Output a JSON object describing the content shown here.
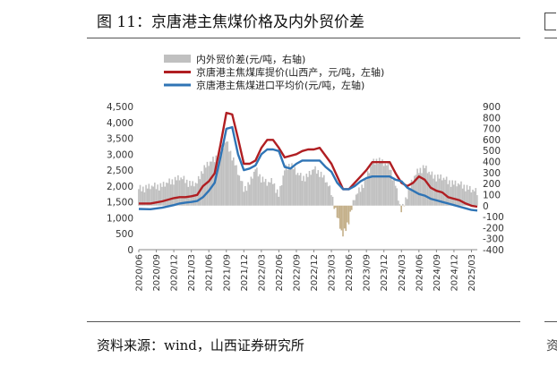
{
  "header": {
    "title": "图 11：京唐港主焦煤价格及内外贸价差"
  },
  "footer": {
    "source": "资料来源：wind，山西证券研究所"
  },
  "chart_data": {
    "type": "line",
    "title": "图 11：京唐港主焦煤价格及内外贸价差",
    "xlabel": "",
    "ylabel": "",
    "left_axis": {
      "ylim": [
        0,
        4500
      ],
      "ticks": [
        "0",
        "500",
        "1,000",
        "1,500",
        "2,000",
        "2,500",
        "3,000",
        "3,500",
        "4,000",
        "4,500"
      ]
    },
    "right_axis": {
      "ylim": [
        -400,
        900
      ],
      "ticks": [
        "-400",
        "-300",
        "-200",
        "-100",
        "0",
        "100",
        "200",
        "300",
        "400",
        "500",
        "600",
        "700",
        "800",
        "900"
      ]
    },
    "x_ticks": [
      "2020/06",
      "2020/09",
      "2020/12",
      "2021/03",
      "2021/06",
      "2021/09",
      "2021/12",
      "2022/03",
      "2022/06",
      "2022/09",
      "2022/12",
      "2023/03",
      "2023/06",
      "2023/09",
      "2023/12",
      "2024/03",
      "2024/06",
      "2024/09",
      "2024/12",
      "2025/03"
    ],
    "x_range": [
      "2020/06",
      "2025/04"
    ],
    "legend": [
      {
        "name": "内外贸价差(元/吨，右轴)",
        "type": "bar",
        "color": "#c0c0c0",
        "negative_color": "#c4b08a"
      },
      {
        "name": "京唐港主焦煤库提价(山西产，元/吨，左轴)",
        "type": "line",
        "color": "#b01e22"
      },
      {
        "name": "京唐港主焦煤进口平均价(元/吨，左轴)",
        "type": "line",
        "color": "#2f74b5"
      }
    ],
    "series": [
      {
        "name": "京唐港主焦煤库提价(山西产，元/吨，左轴)",
        "axis": "left",
        "points": [
          [
            "2020/06",
            1450
          ],
          [
            "2020/08",
            1450
          ],
          [
            "2020/10",
            1520
          ],
          [
            "2020/12",
            1620
          ],
          [
            "2021/01",
            1650
          ],
          [
            "2021/02",
            1650
          ],
          [
            "2021/03",
            1680
          ],
          [
            "2021/04",
            1720
          ],
          [
            "2021/05",
            2000
          ],
          [
            "2021/06",
            2150
          ],
          [
            "2021/07",
            2400
          ],
          [
            "2021/08",
            3300
          ],
          [
            "2021/09",
            4300
          ],
          [
            "2021/10",
            4250
          ],
          [
            "2021/11",
            3500
          ],
          [
            "2021/12",
            2700
          ],
          [
            "2022/01",
            2700
          ],
          [
            "2022/02",
            2800
          ],
          [
            "2022/03",
            3200
          ],
          [
            "2022/04",
            3450
          ],
          [
            "2022/05",
            3450
          ],
          [
            "2022/06",
            3200
          ],
          [
            "2022/07",
            2900
          ],
          [
            "2022/08",
            2950
          ],
          [
            "2022/09",
            3000
          ],
          [
            "2022/10",
            3100
          ],
          [
            "2022/11",
            3150
          ],
          [
            "2022/12",
            3150
          ],
          [
            "2023/01",
            3200
          ],
          [
            "2023/02",
            2950
          ],
          [
            "2023/03",
            2700
          ],
          [
            "2023/04",
            2300
          ],
          [
            "2023/05",
            1900
          ],
          [
            "2023/06",
            1900
          ],
          [
            "2023/07",
            2100
          ],
          [
            "2023/08",
            2300
          ],
          [
            "2023/09",
            2500
          ],
          [
            "2023/10",
            2750
          ],
          [
            "2023/11",
            2750
          ],
          [
            "2023/12",
            2750
          ],
          [
            "2024/01",
            2750
          ],
          [
            "2024/02",
            2400
          ],
          [
            "2024/03",
            2100
          ],
          [
            "2024/04",
            2000
          ],
          [
            "2024/05",
            2100
          ],
          [
            "2024/06",
            2300
          ],
          [
            "2024/07",
            2200
          ],
          [
            "2024/08",
            1950
          ],
          [
            "2024/09",
            1850
          ],
          [
            "2024/10",
            1800
          ],
          [
            "2024/11",
            1650
          ],
          [
            "2024/12",
            1600
          ],
          [
            "2025/01",
            1550
          ],
          [
            "2025/02",
            1450
          ],
          [
            "2025/03",
            1380
          ],
          [
            "2025/04",
            1350
          ]
        ]
      },
      {
        "name": "京唐港主焦煤进口平均价(元/吨，左轴)",
        "axis": "left",
        "points": [
          [
            "2020/06",
            1280
          ],
          [
            "2020/08",
            1270
          ],
          [
            "2020/10",
            1320
          ],
          [
            "2020/12",
            1400
          ],
          [
            "2021/01",
            1450
          ],
          [
            "2021/02",
            1480
          ],
          [
            "2021/03",
            1500
          ],
          [
            "2021/04",
            1530
          ],
          [
            "2021/05",
            1650
          ],
          [
            "2021/06",
            1850
          ],
          [
            "2021/07",
            2100
          ],
          [
            "2021/08",
            2900
          ],
          [
            "2021/09",
            3800
          ],
          [
            "2021/10",
            3850
          ],
          [
            "2021/11",
            3000
          ],
          [
            "2021/12",
            2500
          ],
          [
            "2022/01",
            2550
          ],
          [
            "2022/02",
            2650
          ],
          [
            "2022/03",
            3000
          ],
          [
            "2022/04",
            3150
          ],
          [
            "2022/05",
            3150
          ],
          [
            "2022/06",
            3100
          ],
          [
            "2022/07",
            2600
          ],
          [
            "2022/08",
            2550
          ],
          [
            "2022/09",
            2700
          ],
          [
            "2022/10",
            2800
          ],
          [
            "2022/11",
            2800
          ],
          [
            "2022/12",
            2800
          ],
          [
            "2023/01",
            2800
          ],
          [
            "2023/02",
            2600
          ],
          [
            "2023/03",
            2450
          ],
          [
            "2023/04",
            2100
          ],
          [
            "2023/05",
            1900
          ],
          [
            "2023/06",
            1900
          ],
          [
            "2023/07",
            2000
          ],
          [
            "2023/08",
            2150
          ],
          [
            "2023/09",
            2250
          ],
          [
            "2023/10",
            2300
          ],
          [
            "2023/11",
            2300
          ],
          [
            "2023/12",
            2300
          ],
          [
            "2024/01",
            2300
          ],
          [
            "2024/02",
            2200
          ],
          [
            "2024/03",
            2150
          ],
          [
            "2024/04",
            1950
          ],
          [
            "2024/05",
            1850
          ],
          [
            "2024/06",
            1750
          ],
          [
            "2024/07",
            1700
          ],
          [
            "2024/08",
            1600
          ],
          [
            "2024/09",
            1550
          ],
          [
            "2024/10",
            1500
          ],
          [
            "2024/11",
            1450
          ],
          [
            "2024/12",
            1400
          ],
          [
            "2025/01",
            1350
          ],
          [
            "2025/02",
            1300
          ],
          [
            "2025/03",
            1250
          ],
          [
            "2025/04",
            1230
          ]
        ]
      },
      {
        "name": "内外贸价差(元/吨，右轴)",
        "axis": "right",
        "points": [
          [
            "2020/06",
            150
          ],
          [
            "2020/08",
            170
          ],
          [
            "2020/10",
            180
          ],
          [
            "2020/12",
            230
          ],
          [
            "2021/01",
            250
          ],
          [
            "2021/02",
            230
          ],
          [
            "2021/03",
            190
          ],
          [
            "2021/04",
            200
          ],
          [
            "2021/05",
            330
          ],
          [
            "2021/06",
            380
          ],
          [
            "2021/07",
            420
          ],
          [
            "2021/08",
            500
          ],
          [
            "2021/09",
            580
          ],
          [
            "2021/10",
            450
          ],
          [
            "2021/11",
            300
          ],
          [
            "2021/12",
            150
          ],
          [
            "2022/01",
            200
          ],
          [
            "2022/02",
            330
          ],
          [
            "2022/03",
            250
          ],
          [
            "2022/04",
            200
          ],
          [
            "2022/05",
            220
          ],
          [
            "2022/06",
            90
          ],
          [
            "2022/07",
            320
          ],
          [
            "2022/08",
            380
          ],
          [
            "2022/09",
            300
          ],
          [
            "2022/10",
            250
          ],
          [
            "2022/11",
            270
          ],
          [
            "2022/12",
            330
          ],
          [
            "2023/01",
            300
          ],
          [
            "2023/02",
            230
          ],
          [
            "2023/03",
            120
          ],
          [
            "2023/04",
            -100
          ],
          [
            "2023/05",
            -280
          ],
          [
            "2023/06",
            -130
          ],
          [
            "2023/07",
            70
          ],
          [
            "2023/08",
            150
          ],
          [
            "2023/09",
            250
          ],
          [
            "2023/10",
            380
          ],
          [
            "2023/11",
            420
          ],
          [
            "2023/12",
            380
          ],
          [
            "2024/01",
            350
          ],
          [
            "2024/02",
            190
          ],
          [
            "2024/03",
            -60
          ],
          [
            "2024/04",
            100
          ],
          [
            "2024/05",
            240
          ],
          [
            "2024/06",
            320
          ],
          [
            "2024/07",
            350
          ],
          [
            "2024/08",
            280
          ],
          [
            "2024/09",
            260
          ],
          [
            "2024/10",
            250
          ],
          [
            "2024/11",
            220
          ],
          [
            "2024/12",
            200
          ],
          [
            "2025/01",
            190
          ],
          [
            "2025/02",
            170
          ],
          [
            "2025/03",
            140
          ],
          [
            "2025/04",
            120
          ]
        ]
      }
    ]
  }
}
